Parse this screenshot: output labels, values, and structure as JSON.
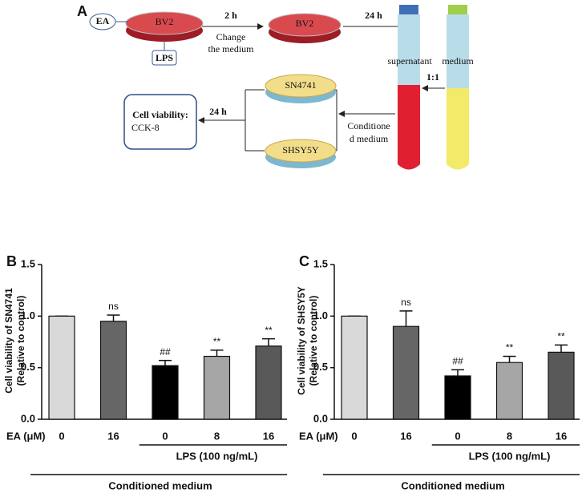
{
  "diagram": {
    "panel": "A",
    "treatment": "EA",
    "dish1": "BV2",
    "stimulus": "LPS",
    "step1_time": "2 h",
    "step1_note": [
      "Change",
      "the medium"
    ],
    "dish2": "BV2",
    "step2_time": "24 h",
    "tube1": "supernatant",
    "tube2": "medium",
    "ratio": "1:1",
    "step3_note": [
      "Conditione",
      "d medium"
    ],
    "cell1": "SN4741",
    "cell2": "SHSY5Y",
    "step4_time": "24 h",
    "assay_title": "Cell viability:",
    "assay": "CCK-8"
  },
  "chart_data": [
    {
      "type": "bar",
      "panel": "B",
      "ylabel": [
        "Cell viability of SN4741",
        "(Relative to control)"
      ],
      "category_axis_label": "EA (μM)",
      "categories": [
        "0",
        "16",
        "0",
        "8",
        "16"
      ],
      "group_label": "LPS (100 ng/mL)",
      "footer": "Conditioned medium",
      "values": [
        1.0,
        0.95,
        0.52,
        0.61,
        0.71
      ],
      "errors": [
        0,
        0.06,
        0.05,
        0.06,
        0.07
      ],
      "annotations": [
        null,
        "ns",
        "##",
        "**",
        "**"
      ],
      "colors": [
        "#d9d9d9",
        "#666666",
        "#000000",
        "#a6a6a6",
        "#595959"
      ],
      "ylim": [
        0,
        1.5
      ],
      "yticks": [
        {
          "value": 0,
          "label": "0.0"
        },
        0.5,
        {
          "value": 1,
          "label": "1.0"
        },
        1.5
      ]
    },
    {
      "type": "bar",
      "panel": "C",
      "ylabel": [
        "Cell viability of SHSY5Y",
        "(Relative to control)"
      ],
      "category_axis_label": "EA (μM)",
      "categories": [
        "0",
        "16",
        "0",
        "8",
        "16"
      ],
      "group_label": "LPS (100 ng/mL)",
      "footer": "Conditioned medium",
      "values": [
        1.0,
        0.9,
        0.42,
        0.55,
        0.65
      ],
      "errors": [
        0,
        0.15,
        0.06,
        0.06,
        0.07
      ],
      "annotations": [
        null,
        "ns",
        "##",
        "**",
        "**"
      ],
      "colors": [
        "#d9d9d9",
        "#666666",
        "#000000",
        "#a6a6a6",
        "#595959"
      ],
      "ylim": [
        0,
        1.5
      ],
      "yticks": [
        {
          "value": 0,
          "label": "0.0"
        },
        0.5,
        {
          "value": 1,
          "label": "1.0"
        },
        1.5
      ]
    }
  ]
}
